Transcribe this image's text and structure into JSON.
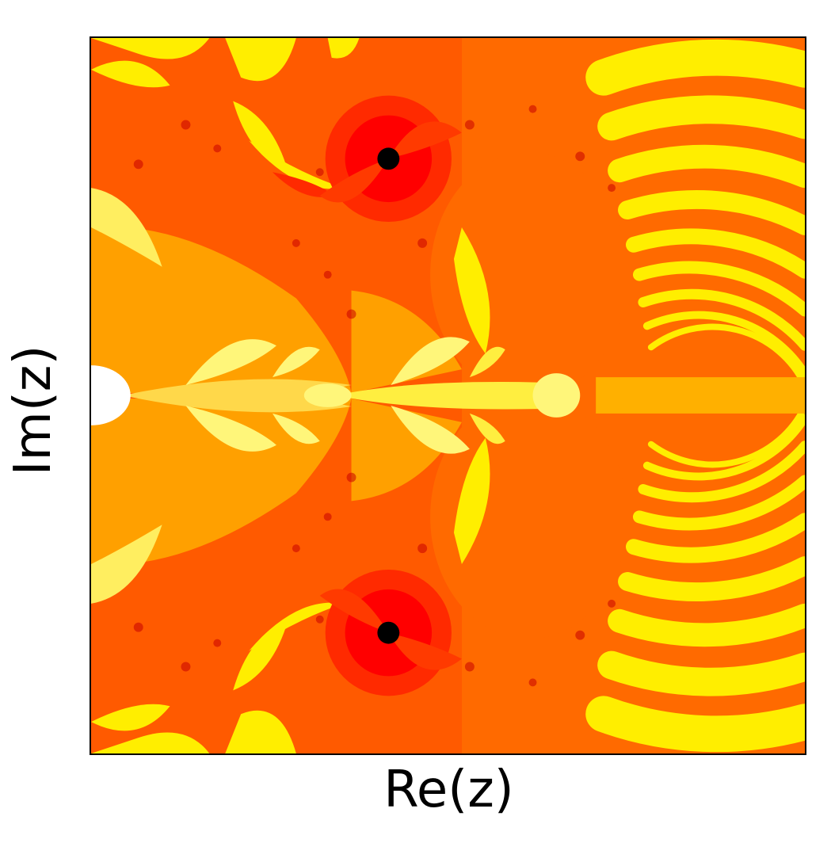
{
  "figure": {
    "xlabel": "Re(z)",
    "ylabel": "Im(z)"
  },
  "colors": {
    "background_orange": "#ff6400",
    "red": "#ff2a00",
    "dark_red": "#d40000",
    "amber": "#ffa000",
    "yellow": "#ffee00",
    "pale_yellow": "#fff67a",
    "white": "#ffffff",
    "black": "#000000"
  },
  "markers": {
    "count": 2,
    "color": "#000000"
  }
}
